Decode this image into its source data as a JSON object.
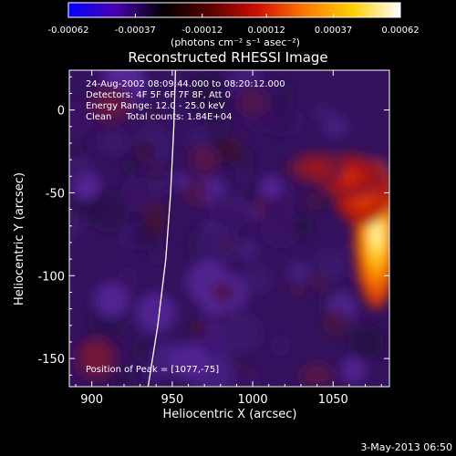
{
  "colorbar": {
    "tick_labels": [
      "-0.00062",
      "-0.00037",
      "-0.00012",
      "0.00012",
      "0.00037",
      "0.00062"
    ],
    "tick_values": [
      -0.00062,
      -0.00037,
      -0.00012,
      0.00012,
      0.00037,
      0.00062
    ],
    "range": [
      -0.00062,
      0.00062
    ],
    "units_label": "(photons cm⁻² s⁻¹ asec⁻²)",
    "colors": [
      "#0000ff",
      "#4a00b0",
      "#000000",
      "#5a0000",
      "#d01000",
      "#ff7a00",
      "#ffd000",
      "#ffffff"
    ]
  },
  "title": "Reconstructed RHESSI Image",
  "info": {
    "time_range": "24-Aug-2002 08:09:44.000 to 08:20:12.000",
    "detectors": "Detectors: 4F 5F 6F 7F 8F, Att 0",
    "energy_range": "Energy Range: 12.0 - 25.0 keV",
    "clean_total": "Clean     Total counts: 1.84E+04",
    "peak_position": "Position of Peak = [1077,-75]"
  },
  "footer": {
    "date": "3-May-2013 06:50"
  },
  "chart_data": {
    "type": "heatmap",
    "title": "Reconstructed RHESSI Image",
    "xlabel": "Heliocentric X (arcsec)",
    "ylabel": "Heliocentric Y (arcsec)",
    "xlim": [
      886,
      1085
    ],
    "ylim": [
      -167,
      24
    ],
    "x_ticks": [
      900,
      950,
      1000,
      1050
    ],
    "y_ticks": [
      0,
      -50,
      -100,
      -150
    ],
    "x_tick_labels": [
      "900",
      "950",
      "1000",
      "1050"
    ],
    "y_tick_labels": [
      "0",
      "-50",
      "-100",
      "-150"
    ],
    "peak": {
      "x": 1077,
      "y": -75
    },
    "limb_curve": {
      "x": [
        935,
        941,
        946,
        949,
        951,
        952
      ],
      "y": [
        -167,
        -130,
        -90,
        -50,
        -10,
        24
      ]
    },
    "hot_regions": [
      {
        "x": 1077,
        "y": -75,
        "rx": 14,
        "ry": 45,
        "level": 1.0
      },
      {
        "x": 1068,
        "y": -50,
        "rx": 18,
        "ry": 20,
        "level": 0.55
      },
      {
        "x": 1060,
        "y": -40,
        "rx": 22,
        "ry": 14,
        "level": 0.4
      },
      {
        "x": 1040,
        "y": -35,
        "rx": 18,
        "ry": 10,
        "level": 0.28
      },
      {
        "x": 903,
        "y": -150,
        "rx": 14,
        "ry": 14,
        "level": 0.2
      },
      {
        "x": 912,
        "y": 3,
        "rx": 14,
        "ry": 12,
        "level": 0.15
      },
      {
        "x": 970,
        "y": -30,
        "rx": 10,
        "ry": 10,
        "level": 0.12
      },
      {
        "x": 1040,
        "y": -160,
        "rx": 12,
        "ry": 8,
        "level": 0.12
      },
      {
        "x": 1000,
        "y": 5,
        "rx": 10,
        "ry": 10,
        "level": 0.1
      }
    ]
  }
}
